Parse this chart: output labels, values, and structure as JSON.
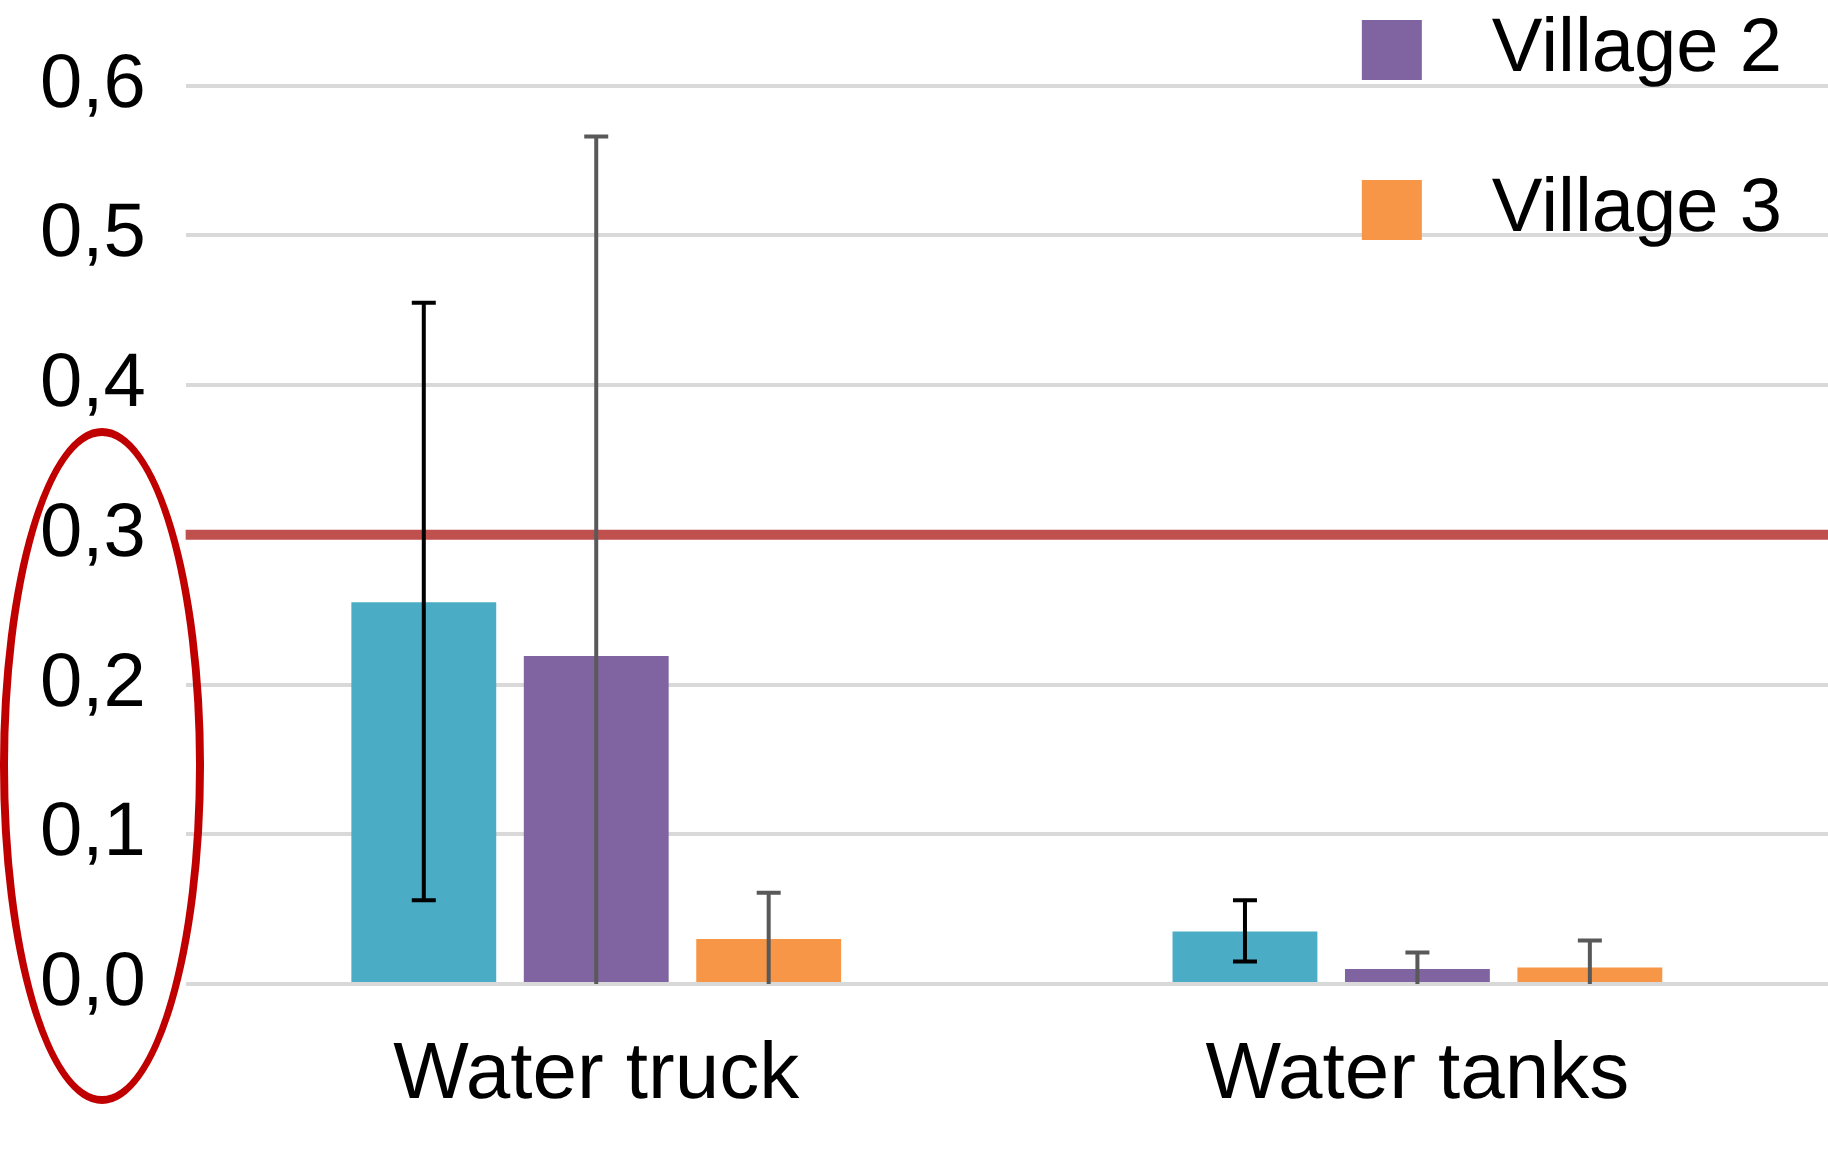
{
  "chart_data": {
    "type": "bar",
    "categories": [
      "Water truck",
      "Water tanks"
    ],
    "series": [
      {
        "color": "#4bacc6",
        "values": [
          0.255,
          0.035
        ],
        "errors": [
          [
            0.056,
            0.455
          ],
          [
            0.015,
            0.056
          ]
        ]
      },
      {
        "name": "Village 2",
        "color": "#8064a2",
        "values": [
          0.219,
          0.01
        ],
        "errors": [
          [
            0,
            0.566
          ],
          [
            0,
            0.021
          ]
        ]
      },
      {
        "name": "Village 3",
        "color": "#f79646",
        "values": [
          0.03,
          0.011
        ],
        "errors": [
          [
            0,
            0.061
          ],
          [
            0,
            0.029
          ]
        ]
      }
    ],
    "ylim": [
      0,
      0.6
    ],
    "yticks": [
      {
        "value": 0,
        "label": "0,0"
      },
      {
        "value": 0.1,
        "label": "0,1"
      },
      {
        "value": 0.2,
        "label": "0,2"
      },
      {
        "value": 0.3,
        "label": "0,3"
      },
      {
        "value": 0.4,
        "label": "0,4"
      },
      {
        "value": 0.5,
        "label": "0,5"
      },
      {
        "value": 0.6,
        "label": "0,6"
      }
    ],
    "ref_lines": [
      {
        "axis": "y",
        "value": 0.3,
        "color": "#c0504d"
      }
    ],
    "grid": "y",
    "legend": "top right"
  }
}
